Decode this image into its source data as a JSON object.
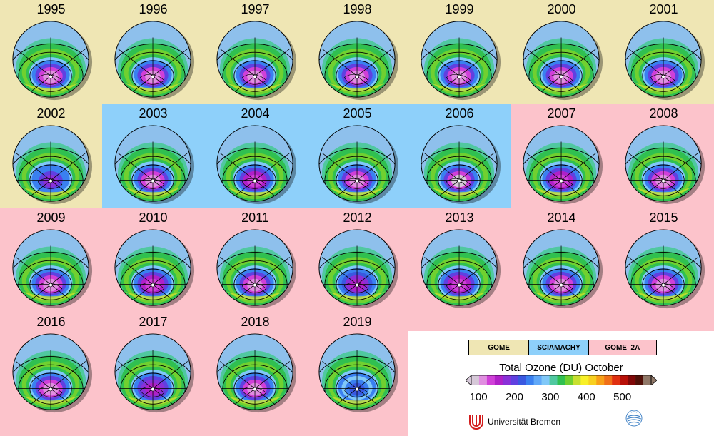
{
  "chart_data": {
    "type": "map",
    "title": "Total Ozone (DU) October",
    "years": [
      "1995",
      "1996",
      "1997",
      "1998",
      "1999",
      "2000",
      "2001",
      "2002",
      "2003",
      "2004",
      "2005",
      "2006",
      "2007",
      "2008",
      "2009",
      "2010",
      "2011",
      "2012",
      "2013",
      "2014",
      "2015",
      "2016",
      "2017",
      "2018",
      "2019"
    ],
    "instruments": [
      {
        "name": "GOME",
        "color": "#efe6b4",
        "years": [
          "1995",
          "1996",
          "1997",
          "1998",
          "1999",
          "2000",
          "2001",
          "2002"
        ]
      },
      {
        "name": "SCIAMACHY",
        "color": "#8ed0fa",
        "years": [
          "2003",
          "2004",
          "2005",
          "2006"
        ]
      },
      {
        "name": "GOME–2A",
        "color": "#fcc3cb",
        "years": [
          "2007",
          "2008",
          "2009",
          "2010",
          "2011",
          "2012",
          "2013",
          "2014",
          "2015",
          "2016",
          "2017",
          "2018",
          "2019"
        ]
      }
    ],
    "colorbar": {
      "min": 80,
      "max": 580,
      "ticks": [
        100,
        200,
        300,
        400,
        500
      ],
      "tick_labels": [
        "100",
        "200",
        "300",
        "400",
        "500"
      ],
      "colors": [
        "#d6c8d8",
        "#e08ee0",
        "#d040d8",
        "#b020c8",
        "#8a30d8",
        "#6040e0",
        "#3a58e0",
        "#3a80f0",
        "#60a8f8",
        "#80c8f8",
        "#50c8a0",
        "#30c050",
        "#70d030",
        "#c8e030",
        "#f8f028",
        "#f8d020",
        "#f8a018",
        "#f07018",
        "#e03010",
        "#b81008",
        "#800808",
        "#501008",
        "#907868"
      ]
    },
    "ozone_hole_min_du": {
      "1995": 110,
      "1996": 110,
      "1997": 110,
      "1998": 105,
      "1999": 115,
      "2000": 105,
      "2001": 110,
      "2002": 180,
      "2003": 105,
      "2004": 130,
      "2005": 110,
      "2006": 100,
      "2007": 140,
      "2008": 120,
      "2009": 120,
      "2010": 125,
      "2011": 110,
      "2012": 160,
      "2013": 140,
      "2014": 120,
      "2015": 105,
      "2016": 120,
      "2017": 150,
      "2018": 115,
      "2019": 220
    }
  },
  "logos": {
    "university": "Universität Bremen"
  }
}
